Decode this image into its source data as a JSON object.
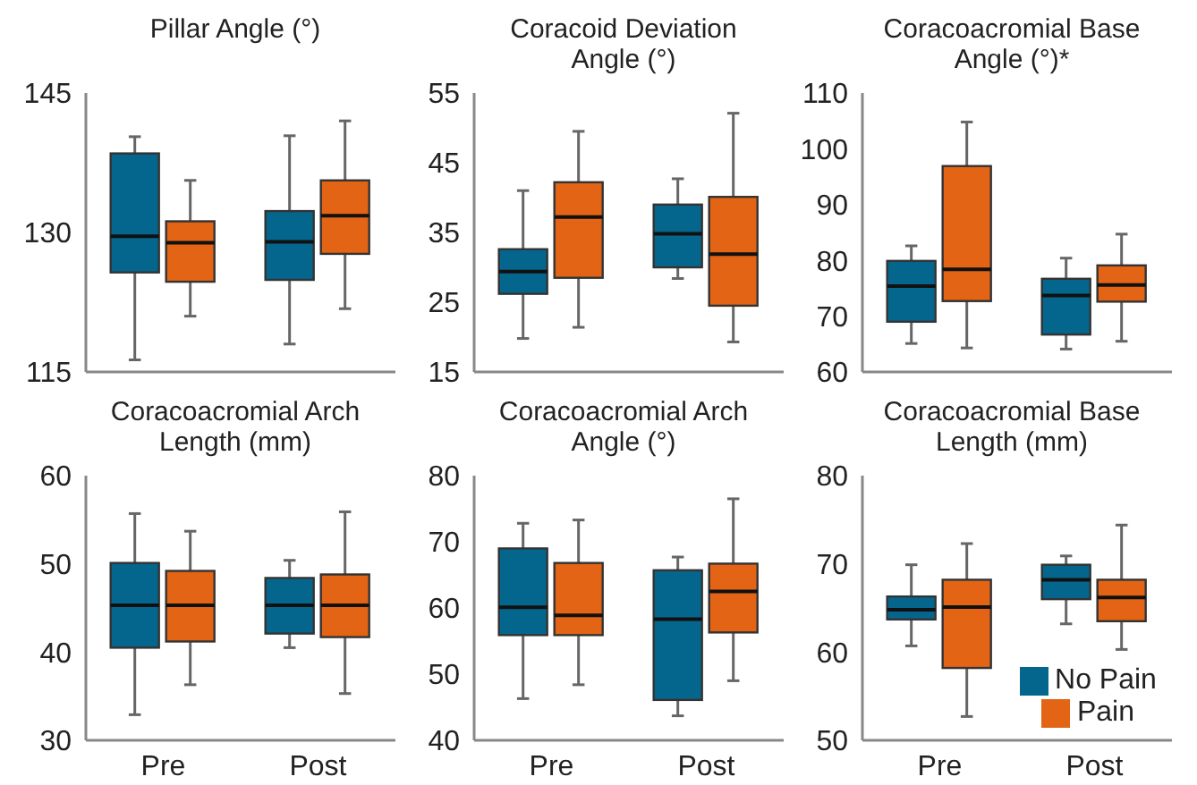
{
  "chart_data": [
    {
      "type": "box",
      "title": "Pillar Angle (°)",
      "categories": [
        null,
        null
      ],
      "ylim": [
        115,
        145
      ],
      "yticks": [
        115,
        130,
        145
      ],
      "tick_labels": "y",
      "legend": false,
      "series": [
        {
          "color": "#05668d",
          "boxes": [
            {
              "low": 116.3,
              "q1": 125.7,
              "median": 129.6,
              "q3": 138.5,
              "high": 140.3
            },
            {
              "low": 118,
              "q1": 124.9,
              "median": 129,
              "q3": 132.3,
              "high": 140.4
            }
          ]
        },
        {
          "color": "#e36414",
          "boxes": [
            {
              "low": 121,
              "q1": 124.7,
              "median": 128.9,
              "q3": 131.2,
              "high": 135.6
            },
            {
              "low": 121.8,
              "q1": 127.7,
              "median": 131.8,
              "q3": 135.6,
              "high": 142
            }
          ]
        }
      ]
    },
    {
      "type": "box",
      "title": "Coracoid Deviation Angle (°)",
      "categories": [
        null,
        null
      ],
      "ylim": [
        15,
        55
      ],
      "yticks": [
        15,
        25,
        35,
        45,
        55
      ],
      "tick_labels": "y",
      "legend": false,
      "series": [
        {
          "color": "#05668d",
          "boxes": [
            {
              "low": 19.8,
              "q1": 26.2,
              "median": 29.4,
              "q3": 32.6,
              "high": 41
            },
            {
              "low": 28.4,
              "q1": 30,
              "median": 34.8,
              "q3": 39,
              "high": 42.7
            }
          ]
        },
        {
          "color": "#e36414",
          "boxes": [
            {
              "low": 21.4,
              "q1": 28.5,
              "median": 37.2,
              "q3": 42.2,
              "high": 49.5
            },
            {
              "low": 19.3,
              "q1": 24.5,
              "median": 31.9,
              "q3": 40.1,
              "high": 52.1
            }
          ]
        }
      ]
    },
    {
      "type": "box",
      "title": "Coracoacromial Base Angle (°)*",
      "categories": [
        null,
        null
      ],
      "ylim": [
        60,
        110
      ],
      "yticks": [
        60,
        70,
        80,
        90,
        100,
        110
      ],
      "tick_labels": "y",
      "legend": false,
      "series": [
        {
          "color": "#05668d",
          "boxes": [
            {
              "low": 65.1,
              "q1": 69,
              "median": 75.4,
              "q3": 79.9,
              "high": 82.6
            },
            {
              "low": 64.1,
              "q1": 66.7,
              "median": 73.7,
              "q3": 76.7,
              "high": 80.4
            }
          ]
        },
        {
          "color": "#e36414",
          "boxes": [
            {
              "low": 64.3,
              "q1": 72.7,
              "median": 78.4,
              "q3": 96.9,
              "high": 104.8
            },
            {
              "low": 65.5,
              "q1": 72.6,
              "median": 75.6,
              "q3": 79.1,
              "high": 84.7
            }
          ]
        }
      ]
    },
    {
      "type": "box",
      "title": "Coracoacromial Arch Length (mm)",
      "categories": [
        "Pre",
        "Post"
      ],
      "ylim": [
        30,
        60
      ],
      "yticks": [
        30,
        40,
        50,
        60
      ],
      "legend": false,
      "series": [
        {
          "color": "#05668d",
          "boxes": [
            {
              "low": 32.9,
              "q1": 40.5,
              "median": 45.3,
              "q3": 50.1,
              "high": 55.7
            },
            {
              "low": 40.5,
              "q1": 42.1,
              "median": 45.3,
              "q3": 48.4,
              "high": 50.4
            }
          ]
        },
        {
          "color": "#e36414",
          "boxes": [
            {
              "low": 36.3,
              "q1": 41.2,
              "median": 45.3,
              "q3": 49.2,
              "high": 53.7
            },
            {
              "low": 35.3,
              "q1": 41.7,
              "median": 45.3,
              "q3": 48.8,
              "high": 55.9
            }
          ]
        }
      ]
    },
    {
      "type": "box",
      "title": "Coracoacromial Arch Angle (°)",
      "categories": [
        "Pre",
        "Post"
      ],
      "ylim": [
        40,
        80
      ],
      "yticks": [
        40,
        50,
        60,
        70,
        80
      ],
      "legend": false,
      "series": [
        {
          "color": "#05668d",
          "boxes": [
            {
              "low": 46.3,
              "q1": 55.9,
              "median": 60.1,
              "q3": 69,
              "high": 72.8
            },
            {
              "low": 43.7,
              "q1": 46.1,
              "median": 58.3,
              "q3": 65.7,
              "high": 67.7
            }
          ]
        },
        {
          "color": "#e36414",
          "boxes": [
            {
              "low": 48.4,
              "q1": 55.9,
              "median": 58.9,
              "q3": 66.8,
              "high": 73.3
            },
            {
              "low": 49,
              "q1": 56.3,
              "median": 62.5,
              "q3": 66.7,
              "high": 76.5
            }
          ]
        }
      ]
    },
    {
      "type": "box",
      "title": "Coracoacromial Base Length (mm)",
      "categories": [
        "Pre",
        "Post"
      ],
      "ylim": [
        50,
        80
      ],
      "yticks": [
        50,
        60,
        70,
        80
      ],
      "legend": "bottom right",
      "series": [
        {
          "name": "No Pain",
          "color": "#05668d",
          "boxes": [
            {
              "low": 60.7,
              "q1": 63.7,
              "median": 64.8,
              "q3": 66.3,
              "high": 69.9
            },
            {
              "low": 63.2,
              "q1": 66,
              "median": 68.2,
              "q3": 69.9,
              "high": 70.9
            }
          ]
        },
        {
          "name": "Pain",
          "color": "#e36414",
          "boxes": [
            {
              "low": 52.7,
              "q1": 58.2,
              "median": 65.1,
              "q3": 68.2,
              "high": 72.3
            },
            {
              "low": 60.3,
              "q1": 63.5,
              "median": 66.2,
              "q3": 68.2,
              "high": 74.4
            }
          ]
        }
      ]
    }
  ]
}
